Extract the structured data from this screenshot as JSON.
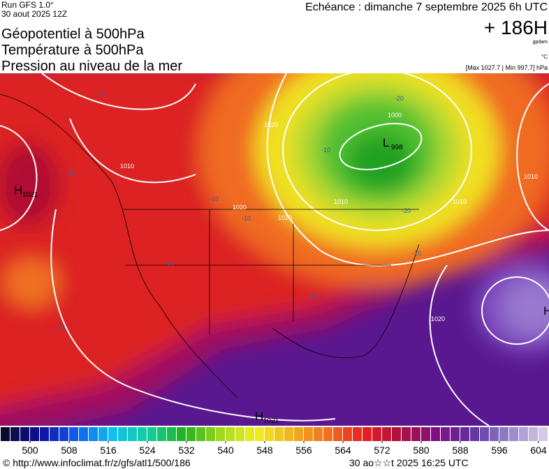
{
  "header": {
    "run": "Run GFS 1.0°",
    "date": "30 aout 2025 12Z",
    "titles": [
      "Géopotentiel à 500hPa",
      "Température à 500hPa",
      "Pression au niveau de la mer"
    ],
    "echeance": "Echéance : dimanche 7 septembre 2025 6h UTC",
    "lead": "+ 186H",
    "lead_unit": "gpdam",
    "temp_unit": "°C",
    "range": "[Max 1027.7 | Min 997.7] hPa"
  },
  "map": {
    "centers": [
      {
        "text": "H",
        "value": 1021
      },
      {
        "text": "L",
        "value": 998
      },
      {
        "text": "H",
        "value": 1021
      },
      {
        "text": "H"
      }
    ],
    "isobar_labels": [
      1010,
      1020,
      1020,
      1020,
      1010,
      1010,
      1010,
      1000,
      1020
    ],
    "temperature_labels": [
      -10,
      -10,
      -10,
      -10,
      -20,
      -20,
      -10,
      -10,
      -10,
      -10,
      -10
    ]
  },
  "colorbar": {
    "ticks": [
      500,
      508,
      516,
      524,
      532,
      540,
      548,
      556,
      564,
      572,
      580,
      588,
      596,
      604
    ],
    "colors": [
      "#0a0a30",
      "#1010a0",
      "#1060f0",
      "#10c0f0",
      "#10d0a0",
      "#20b020",
      "#a0d820",
      "#f0f020",
      "#f0b020",
      "#f07020",
      "#e82020",
      "#b01040",
      "#801080",
      "#6030a0",
      "#9080c8",
      "#d8c8e8"
    ]
  },
  "footer": {
    "url": "© http://www.infoclimat.fr/z/gfs/atl1/500/186",
    "time": "30 ao☆☆t 2025 16:25 UTC"
  }
}
